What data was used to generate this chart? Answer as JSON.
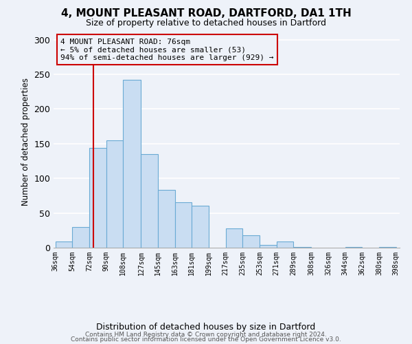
{
  "title": "4, MOUNT PLEASANT ROAD, DARTFORD, DA1 1TH",
  "subtitle": "Size of property relative to detached houses in Dartford",
  "xlabel": "Distribution of detached houses by size in Dartford",
  "ylabel": "Number of detached properties",
  "bar_edges": [
    36,
    54,
    72,
    90,
    108,
    127,
    145,
    163,
    181,
    199,
    217,
    235,
    253,
    271,
    289,
    308,
    326,
    344,
    362,
    380,
    398
  ],
  "bar_heights": [
    9,
    30,
    144,
    155,
    242,
    135,
    83,
    65,
    61,
    0,
    28,
    18,
    4,
    9,
    1,
    0,
    0,
    1,
    0,
    1
  ],
  "bar_color": "#c9ddf2",
  "bar_edgecolor": "#6aaad4",
  "vline_x": 76,
  "vline_color": "#cc0000",
  "ylim": [
    0,
    305
  ],
  "yticks": [
    0,
    50,
    100,
    150,
    200,
    250,
    300
  ],
  "annotation_lines": [
    "4 MOUNT PLEASANT ROAD: 76sqm",
    "← 5% of detached houses are smaller (53)",
    "94% of semi-detached houses are larger (929) →"
  ],
  "footer_line1": "Contains HM Land Registry data © Crown copyright and database right 2024.",
  "footer_line2": "Contains public sector information licensed under the Open Government Licence v3.0.",
  "bg_color": "#eef2f9",
  "grid_color": "#ffffff"
}
